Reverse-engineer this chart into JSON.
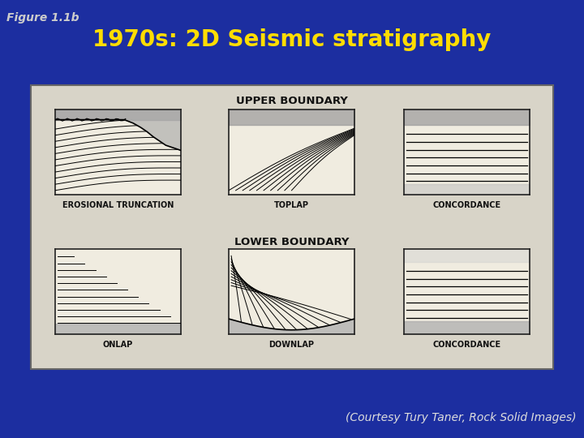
{
  "background_color": "#1c2ea0",
  "figure_label": "Figure 1.1b",
  "figure_label_color": "#cccccc",
  "figure_label_fontsize": 10,
  "title": "1970s: 2D Seismic stratigraphy",
  "title_color": "#ffdd00",
  "title_fontsize": 20,
  "caption": "(Courtesy Tury Taner, Rock Solid Images)",
  "caption_color": "#dddddd",
  "caption_fontsize": 10,
  "panel_bg": "#d8d4c8",
  "upper_boundary_label": "UPPER BOUNDARY",
  "lower_boundary_label": "LOWER BOUNDARY",
  "boundary_label_fontsize": 9.5,
  "sub_labels_top": [
    "EROSIONAL TRUNCATION",
    "TOPLAP",
    "CONCORDANCE"
  ],
  "sub_labels_bot": [
    "ONLAP",
    "DOWNLAP",
    "CONCORDANCE"
  ],
  "sub_label_fontsize": 7.0,
  "box_bg": "#f0ece0",
  "gray_fill": "#aaaaaa"
}
